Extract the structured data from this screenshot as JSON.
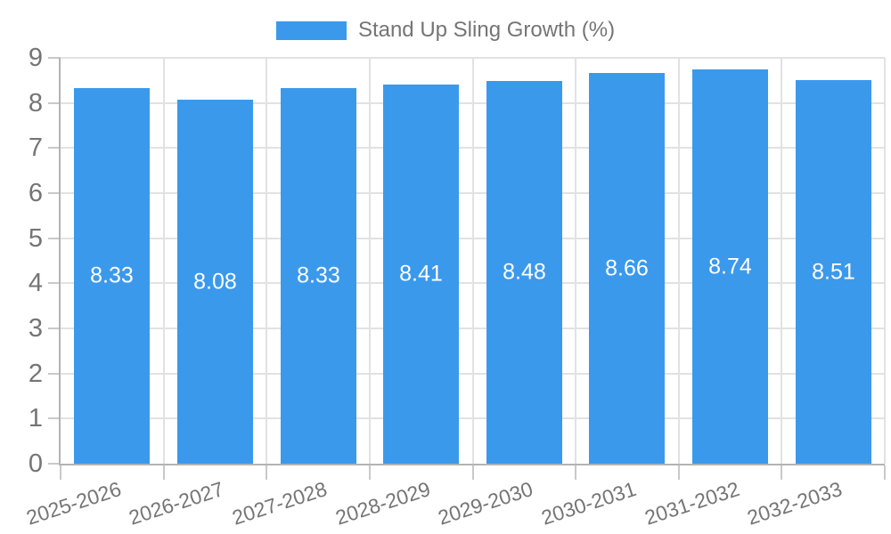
{
  "chart_data": {
    "type": "bar",
    "legend": "Stand Up Sling Growth (%)",
    "legend_position": "top",
    "categories": [
      "2025-2026",
      "2026-2027",
      "2027-2028",
      "2028-2029",
      "2029-2030",
      "2030-2031",
      "2031-2032",
      "2032-2033"
    ],
    "values": [
      8.33,
      8.08,
      8.33,
      8.41,
      8.48,
      8.66,
      8.74,
      8.51
    ],
    "value_labels": [
      "8.33",
      "8.08",
      "8.33",
      "8.41",
      "8.48",
      "8.66",
      "8.74",
      "8.51"
    ],
    "xlabel": "",
    "ylabel": "",
    "ylim": [
      0,
      9
    ],
    "yticks": [
      0,
      1,
      2,
      3,
      4,
      5,
      6,
      7,
      8,
      9
    ],
    "grid": true,
    "colors": {
      "bar": "#3b99ec",
      "value_label": "#ffffff",
      "axis_text": "#757575",
      "legend_text": "#757575",
      "gridline": "#e2e2e2",
      "tick": "#c9c9c9",
      "axis_line": "#b3b3b3",
      "background": "#ffffff"
    }
  }
}
